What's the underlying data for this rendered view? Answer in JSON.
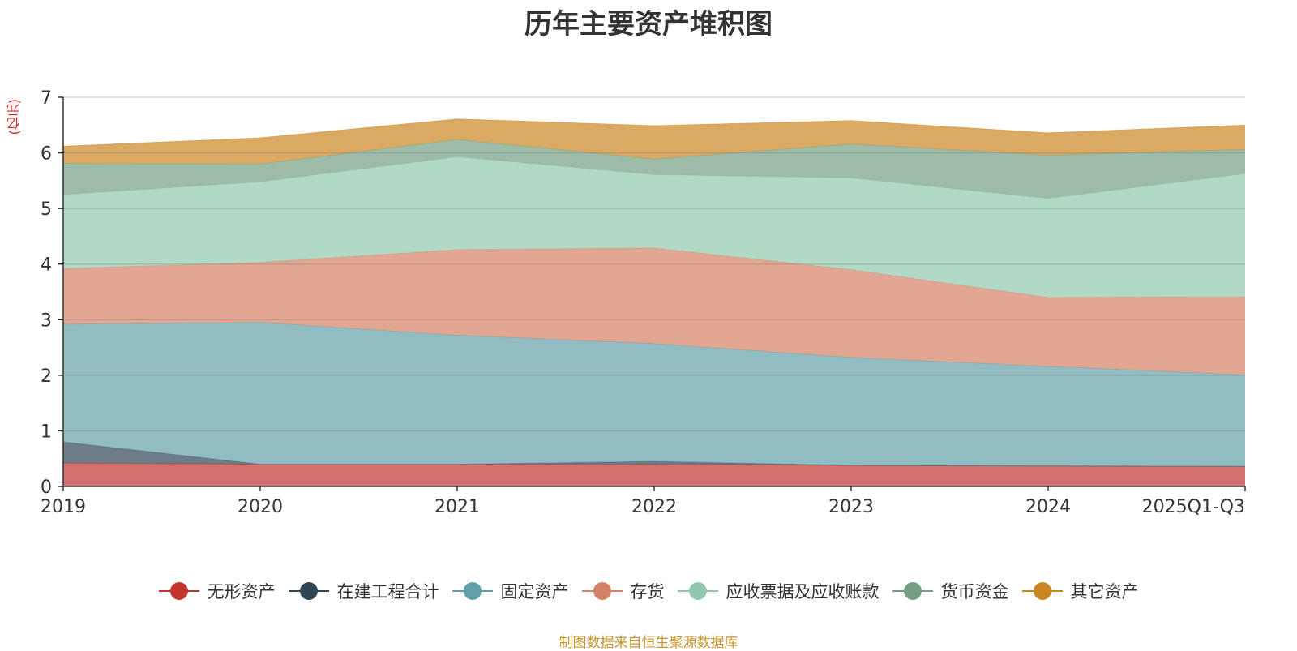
{
  "chart_data": {
    "type": "area",
    "stacked": true,
    "title": "历年主要资产堆积图",
    "ylabel": "(亿元)",
    "xlabel": "",
    "categories": [
      "2019",
      "2020",
      "2021",
      "2022",
      "2023",
      "2024",
      "2025Q1-Q3"
    ],
    "ylim": [
      0,
      7
    ],
    "yticks": [
      0,
      1,
      2,
      3,
      4,
      5,
      6,
      7
    ],
    "series": [
      {
        "name": "无形资产",
        "color": "#c23531",
        "values": [
          0.42,
          0.4,
          0.4,
          0.4,
          0.38,
          0.37,
          0.36
        ]
      },
      {
        "name": "在建工程合计",
        "color": "#2f4554",
        "values": [
          0.38,
          0.0,
          0.0,
          0.05,
          0.0,
          0.0,
          0.0
        ]
      },
      {
        "name": "固定资产",
        "color": "#61a0a8",
        "values": [
          2.12,
          2.55,
          2.32,
          2.12,
          1.94,
          1.79,
          1.65
        ]
      },
      {
        "name": "存货",
        "color": "#d48265",
        "values": [
          1.0,
          1.08,
          1.54,
          1.72,
          1.58,
          1.24,
          1.4
        ]
      },
      {
        "name": "应收票据及应收账款",
        "color": "#91c7ae",
        "values": [
          1.33,
          1.45,
          1.67,
          1.32,
          1.65,
          1.78,
          2.22
        ]
      },
      {
        "name": "货币资金",
        "color": "#749f83",
        "values": [
          0.56,
          0.32,
          0.31,
          0.28,
          0.61,
          0.78,
          0.43
        ]
      },
      {
        "name": "其它资产",
        "color": "#ca8622",
        "values": [
          0.31,
          0.47,
          0.37,
          0.6,
          0.42,
          0.4,
          0.44
        ]
      }
    ],
    "legend_position": "bottom-center",
    "grid": true
  },
  "source_note": "制图数据来自恒生聚源数据库"
}
